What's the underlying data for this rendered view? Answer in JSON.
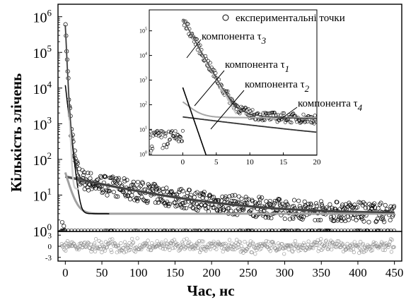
{
  "chart_data": [
    {
      "panel": "main",
      "type": "scatter",
      "xlabel": "Час, нс",
      "ylabel": "Кількість злічень",
      "xlim": [
        -10,
        460
      ],
      "ylim_log10": [
        -0.02,
        6.35
      ],
      "y_scale": "log",
      "x_ticks": [
        0,
        50,
        100,
        150,
        200,
        250,
        300,
        350,
        400,
        450
      ],
      "x_tick_labels": [
        "0",
        "50",
        "100",
        "150",
        "200",
        "250",
        "300",
        "350",
        "400",
        "450"
      ],
      "y_ticks": [
        1,
        10,
        100,
        1000,
        10000,
        100000,
        1000000
      ],
      "y_tick_labels": [
        {
          "base": "10",
          "exp": "0"
        },
        {
          "base": "10",
          "exp": "1"
        },
        {
          "base": "10",
          "exp": "2"
        },
        {
          "base": "10",
          "exp": "3"
        },
        {
          "base": "10",
          "exp": "4"
        },
        {
          "base": "10",
          "exp": "5"
        },
        {
          "base": "10",
          "exp": "6"
        }
      ],
      "peak": {
        "x": 1,
        "y": 600000
      },
      "experimental_baseline": {
        "x_range": [
          -5,
          450
        ],
        "y_range": [
          1,
          5
        ]
      },
      "fit_components": [
        {
          "amplitude": 550000,
          "tau": 1.0,
          "offset": 0
        },
        {
          "amplitude": 12000,
          "tau": 2.5,
          "offset": 3
        },
        {
          "amplitude": 40,
          "tau": 6.0,
          "offset": 3
        },
        {
          "amplitude": 30,
          "tau": 90,
          "offset": 3
        }
      ],
      "grid": false
    },
    {
      "panel": "residuals",
      "type": "scatter",
      "ylim": [
        -4,
        4
      ],
      "y_ticks": [
        3,
        0,
        -3
      ],
      "y_tick_labels": [
        "3",
        "0",
        "-3"
      ],
      "spread": [
        -3,
        3
      ]
    },
    {
      "panel": "inset",
      "type": "scatter",
      "xlim": [
        -5,
        20
      ],
      "y_scale": "log",
      "ylim_log10": [
        -0.05,
        5.85
      ],
      "x_ticks": [
        0,
        5,
        10,
        15,
        20
      ],
      "x_tick_labels": [
        "0",
        "5",
        "10",
        "15",
        "20"
      ],
      "y_ticks": [
        1,
        10,
        100,
        1000,
        10000,
        100000
      ],
      "y_tick_labels": [
        {
          "base": "10",
          "exp": "0"
        },
        {
          "base": "10",
          "exp": "1"
        },
        {
          "base": "10",
          "exp": "2"
        },
        {
          "base": "10",
          "exp": "3"
        },
        {
          "base": "10",
          "exp": "4"
        },
        {
          "base": "10",
          "exp": "5"
        }
      ],
      "legend_marker": "open-circle",
      "legend_label": "експериментальні точки",
      "annotations": [
        {
          "text": "компонента τ",
          "sub": "3"
        },
        {
          "text": "компонента τ",
          "sub": "1"
        },
        {
          "text": "компонента τ",
          "sub": "2"
        },
        {
          "text": "компонента τ",
          "sub": "4"
        }
      ],
      "components": [
        {
          "name": "компонента τ3",
          "color": "#bfbfbf",
          "amplitude": 300000,
          "tau": 0.9
        },
        {
          "name": "компонента τ1",
          "color": "#000000",
          "amplitude": 500,
          "tau": 0.55
        },
        {
          "name": "компонента τ2",
          "color": "#a6a6a6",
          "amplitude": 130,
          "tau": 1.2
        },
        {
          "name": "компонента τ4",
          "color": "#333333",
          "amplitude": 30,
          "tau": 12
        }
      ],
      "total_fit_tail": {
        "amplitude": 100,
        "tau": 5,
        "offset": 25
      }
    }
  ]
}
